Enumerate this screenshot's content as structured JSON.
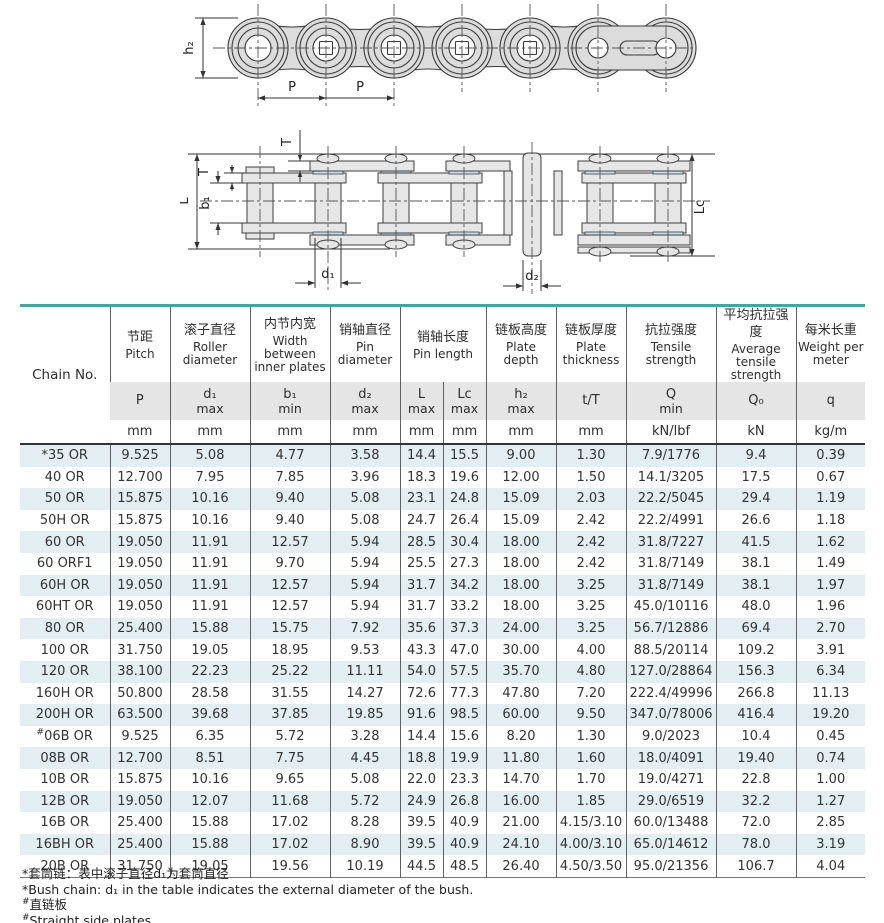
{
  "colors": {
    "accent_teal": "#4aa39b",
    "row_alt_blue": "#e2eef1",
    "header_gray": "#e5e5e5",
    "bushing_blue": "#c8ddec",
    "part_gray": "#dcdcdc"
  },
  "diagram_side_view": {
    "labels": {
      "h2": "h₂",
      "p1": "P",
      "p2": "P"
    }
  },
  "diagram_plan_view": {
    "labels": {
      "T_top": "T",
      "T_left": "T",
      "L": "L",
      "b1": "b₁",
      "Lc": "Lc",
      "d1": "d₁",
      "d2": "d₂"
    }
  },
  "table": {
    "chain_no_header": "Chain No.",
    "columns": [
      {
        "cn": "节距",
        "en": "Pitch",
        "sym": "P",
        "sub": "",
        "unit": "mm"
      },
      {
        "cn": "滚子直径",
        "en": "Roller diameter",
        "sym": "d₁",
        "sub": "max",
        "unit": "mm"
      },
      {
        "cn": "内节内宽",
        "en": "Width between inner plates",
        "sym": "b₁",
        "sub": "min",
        "unit": "mm"
      },
      {
        "cn": "销轴直径",
        "en": "Pin diameter",
        "sym": "d₂",
        "sub": "max",
        "unit": "mm"
      },
      {
        "cn": "销轴长度",
        "en": "Pin length",
        "sub_cols": [
          {
            "sym": "L",
            "sub": "max",
            "unit": "mm"
          },
          {
            "sym": "Lc",
            "sub": "max",
            "unit": "mm"
          }
        ]
      },
      {
        "cn": "链板高度",
        "en": "Plate depth",
        "sym": "h₂",
        "sub": "max",
        "unit": "mm"
      },
      {
        "cn": "链板厚度",
        "en": "Plate thickness",
        "sym": "t/T",
        "sub": "",
        "unit": "mm"
      },
      {
        "cn": "抗拉强度",
        "en": "Tensile strength",
        "sym": "Q",
        "sub": "min",
        "unit": "kN/lbf"
      },
      {
        "cn": "平均抗拉强度",
        "en": "Average tensile strength",
        "sym": "Q₀",
        "sub": "",
        "unit": "kN"
      },
      {
        "cn": "每米长重",
        "en": "Weight per meter",
        "sym": "q",
        "sub": "",
        "unit": "kg/m"
      }
    ],
    "rows": [
      [
        "*35 OR",
        "9.525",
        "5.08",
        "4.77",
        "3.58",
        "14.4",
        "15.5",
        "9.00",
        "1.30",
        "7.9/1776",
        "9.4",
        "0.39"
      ],
      [
        "40 OR",
        "12.700",
        "7.95",
        "7.85",
        "3.96",
        "18.3",
        "19.6",
        "12.00",
        "1.50",
        "14.1/3205",
        "17.5",
        "0.67"
      ],
      [
        "50 OR",
        "15.875",
        "10.16",
        "9.40",
        "5.08",
        "23.1",
        "24.8",
        "15.09",
        "2.03",
        "22.2/5045",
        "29.4",
        "1.19"
      ],
      [
        "50H OR",
        "15.875",
        "10.16",
        "9.40",
        "5.08",
        "24.7",
        "26.4",
        "15.09",
        "2.42",
        "22.2/4991",
        "26.6",
        "1.18"
      ],
      [
        "60 OR",
        "19.050",
        "11.91",
        "12.57",
        "5.94",
        "28.5",
        "30.4",
        "18.00",
        "2.42",
        "31.8/7227",
        "41.5",
        "1.62"
      ],
      [
        "60 ORF1",
        "19.050",
        "11.91",
        "9.70",
        "5.94",
        "25.5",
        "27.3",
        "18.00",
        "2.42",
        "31.8/7149",
        "38.1",
        "1.49"
      ],
      [
        "60H OR",
        "19.050",
        "11.91",
        "12.57",
        "5.94",
        "31.7",
        "34.2",
        "18.00",
        "3.25",
        "31.8/7149",
        "38.1",
        "1.97"
      ],
      [
        "60HT OR",
        "19.050",
        "11.91",
        "12.57",
        "5.94",
        "31.7",
        "33.2",
        "18.00",
        "3.25",
        "45.0/10116",
        "48.0",
        "1.96"
      ],
      [
        "80 OR",
        "25.400",
        "15.88",
        "15.75",
        "7.92",
        "35.6",
        "37.3",
        "24.00",
        "3.25",
        "56.7/12886",
        "69.4",
        "2.70"
      ],
      [
        "100 OR",
        "31.750",
        "19.05",
        "18.95",
        "9.53",
        "43.3",
        "47.0",
        "30.00",
        "4.00",
        "88.5/20114",
        "109.2",
        "3.91"
      ],
      [
        "120 OR",
        "38.100",
        "22.23",
        "25.22",
        "11.11",
        "54.0",
        "57.5",
        "35.70",
        "4.80",
        "127.0/28864",
        "156.3",
        "6.34"
      ],
      [
        "160H OR",
        "50.800",
        "28.58",
        "31.55",
        "14.27",
        "72.6",
        "77.3",
        "47.80",
        "7.20",
        "222.4/49996",
        "266.8",
        "11.13"
      ],
      [
        "200H OR",
        "63.500",
        "39.68",
        "37.85",
        "19.85",
        "91.6",
        "98.5",
        "60.00",
        "9.50",
        "347.0/78006",
        "416.4",
        "19.20"
      ],
      [
        "#06B OR",
        "9.525",
        "6.35",
        "5.72",
        "3.28",
        "14.4",
        "15.6",
        "8.20",
        "1.30",
        "9.0/2023",
        "10.4",
        "0.45"
      ],
      [
        "08B OR",
        "12.700",
        "8.51",
        "7.75",
        "4.45",
        "18.8",
        "19.9",
        "11.80",
        "1.60",
        "18.0/4091",
        "19.40",
        "0.74"
      ],
      [
        "10B OR",
        "15.875",
        "10.16",
        "9.65",
        "5.08",
        "22.0",
        "23.3",
        "14.70",
        "1.70",
        "19.0/4271",
        "22.8",
        "1.00"
      ],
      [
        "12B OR",
        "19.050",
        "12.07",
        "11.68",
        "5.72",
        "24.9",
        "26.8",
        "16.00",
        "1.85",
        "29.0/6519",
        "32.2",
        "1.27"
      ],
      [
        "16B OR",
        "25.400",
        "15.88",
        "17.02",
        "8.28",
        "39.5",
        "40.9",
        "21.00",
        "4.15/3.10",
        "60.0/13488",
        "72.0",
        "2.85"
      ],
      [
        "16BH OR",
        "25.400",
        "15.88",
        "17.02",
        "8.90",
        "39.5",
        "40.9",
        "24.10",
        "4.00/3.10",
        "65.0/14612",
        "78.0",
        "3.19"
      ],
      [
        "20B OR",
        "31.750",
        "19.05",
        "19.56",
        "10.19",
        "44.5",
        "48.5",
        "26.40",
        "4.50/3.50",
        "95.0/21356",
        "106.7",
        "4.04"
      ]
    ]
  },
  "footnotes": [
    {
      "mark": "*",
      "sup": false,
      "text": "套筒链：表中滚子直径d₁为套筒直径"
    },
    {
      "mark": "*",
      "sup": false,
      "text": "Bush chain: d₁ in the table indicates the external diameter of the bush."
    },
    {
      "mark": "#",
      "sup": true,
      "text": "直链板"
    },
    {
      "mark": "#",
      "sup": true,
      "text": "Straight side plates"
    }
  ]
}
